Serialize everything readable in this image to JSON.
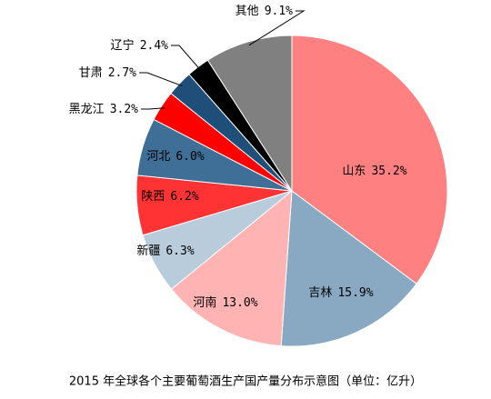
{
  "chart_data": {
    "type": "pie",
    "title": "2015 年全球各个主要葡萄酒生产国产量分布示意图（单位：亿升）",
    "categories": [
      "山东",
      "吉林",
      "河南",
      "新疆",
      "陕西",
      "河北",
      "黑龙江",
      "甘肃",
      "辽宁",
      "其他"
    ],
    "values": [
      35.2,
      15.9,
      13.0,
      6.3,
      6.2,
      6.0,
      3.2,
      2.7,
      2.4,
      9.1
    ],
    "value_labels": [
      "35.2%",
      "15.9%",
      "13.0%",
      "6.3%",
      "6.2%",
      "6.0%",
      "3.2%",
      "2.7%",
      "2.4%",
      "9.1%"
    ],
    "colors": [
      "#FF8080",
      "#89A8C2",
      "#FFB3B3",
      "#B8CCDC",
      "#FF3333",
      "#3F6E96",
      "#FF0000",
      "#1F4E79",
      "#000000",
      "#808080"
    ]
  }
}
